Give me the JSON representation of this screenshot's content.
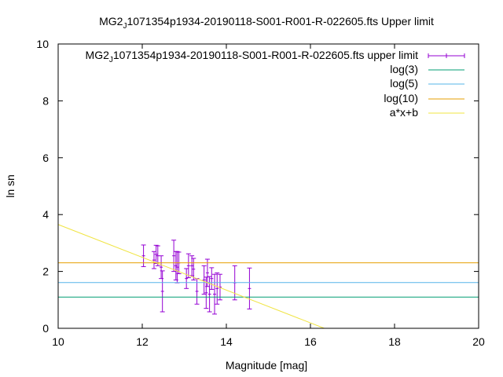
{
  "chart_data": {
    "type": "scatter",
    "title_pre": "MG2",
    "title_sub": "J",
    "title_post": "1071354p1934-20190118-S001-R001-R-022605.fts Upper limit",
    "xlabel": "Magnitude [mag]",
    "ylabel": "ln sn",
    "xlim": [
      10,
      20
    ],
    "ylim": [
      0,
      10
    ],
    "xticks": [
      "10",
      "12",
      "14",
      "16",
      "18",
      "20"
    ],
    "yticks": [
      "0",
      "2",
      "4",
      "6",
      "8",
      "10"
    ],
    "grid": false,
    "legend_position": "top-right",
    "series": [
      {
        "name_pre": "MG2",
        "name_sub": "J",
        "name_post": "1071354p1934-20190118-S001-R001-R-022605.fts upper limit",
        "kind": "errorbars",
        "color": "#9400d3",
        "points": [
          {
            "x": 12.03,
            "y": 2.55,
            "e": 0.38
          },
          {
            "x": 12.28,
            "y": 2.4,
            "e": 0.3
          },
          {
            "x": 12.33,
            "y": 2.6,
            "e": 0.32
          },
          {
            "x": 12.37,
            "y": 2.55,
            "e": 0.35
          },
          {
            "x": 12.45,
            "y": 2.15,
            "e": 0.4
          },
          {
            "x": 12.48,
            "y": 1.3,
            "e": 0.72
          },
          {
            "x": 12.75,
            "y": 2.55,
            "e": 0.55
          },
          {
            "x": 12.8,
            "y": 2.2,
            "e": 0.5
          },
          {
            "x": 12.83,
            "y": 2.15,
            "e": 0.55
          },
          {
            "x": 12.87,
            "y": 2.3,
            "e": 0.38
          },
          {
            "x": 13.05,
            "y": 1.75,
            "e": 0.35
          },
          {
            "x": 13.1,
            "y": 2.2,
            "e": 0.42
          },
          {
            "x": 13.18,
            "y": 2.2,
            "e": 0.35
          },
          {
            "x": 13.22,
            "y": 2.08,
            "e": 0.38
          },
          {
            "x": 13.3,
            "y": 1.3,
            "e": 0.45
          },
          {
            "x": 13.47,
            "y": 1.7,
            "e": 0.5
          },
          {
            "x": 13.52,
            "y": 1.25,
            "e": 0.55
          },
          {
            "x": 13.55,
            "y": 1.95,
            "e": 0.48
          },
          {
            "x": 13.6,
            "y": 1.2,
            "e": 0.62
          },
          {
            "x": 13.65,
            "y": 1.75,
            "e": 0.38
          },
          {
            "x": 13.72,
            "y": 1.2,
            "e": 0.7
          },
          {
            "x": 13.78,
            "y": 1.4,
            "e": 0.55
          },
          {
            "x": 13.85,
            "y": 1.45,
            "e": 0.45
          },
          {
            "x": 14.2,
            "y": 1.6,
            "e": 0.6
          },
          {
            "x": 14.55,
            "y": 1.4,
            "e": 0.72
          }
        ]
      },
      {
        "name": "log(3)",
        "kind": "hline",
        "y": 1.0986,
        "color": "#009e73"
      },
      {
        "name": "log(5)",
        "kind": "hline",
        "y": 1.6094,
        "color": "#56b4e9"
      },
      {
        "name": "log(10)",
        "kind": "hline",
        "y": 2.3026,
        "color": "#e69f00"
      },
      {
        "name": "a*x+b",
        "kind": "line",
        "color": "#f0e442",
        "points": [
          [
            10,
            3.65
          ],
          [
            16.33,
            0
          ]
        ]
      }
    ]
  }
}
